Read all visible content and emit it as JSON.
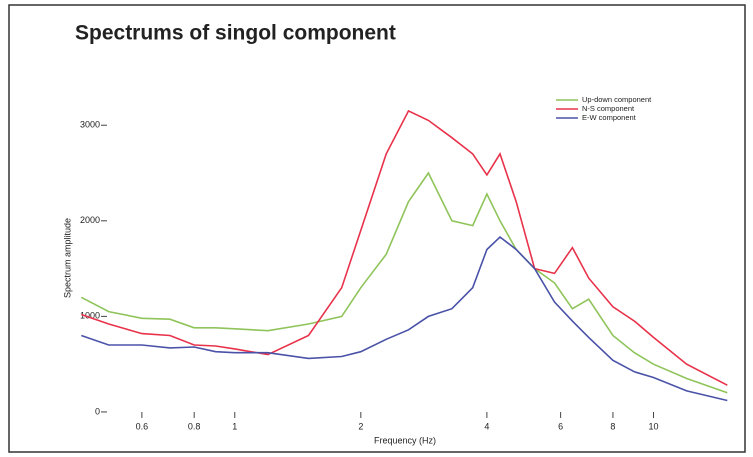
{
  "chart_data": {
    "type": "line",
    "title": "Spectrums of singol component",
    "xlabel": "Frequency (Hz)",
    "ylabel": "Spectrum amplitude",
    "xscale": "log",
    "x": [
      0.43,
      0.5,
      0.6,
      0.7,
      0.8,
      0.9,
      1,
      1.2,
      1.5,
      1.8,
      2,
      2.3,
      2.6,
      2.9,
      3.3,
      3.7,
      4,
      4.3,
      4.7,
      5.2,
      5.8,
      6.4,
      7,
      8,
      9,
      10,
      12,
      15
    ],
    "series": [
      {
        "name": "Up-down component",
        "color": "#8fc45a",
        "values": [
          1200,
          1050,
          980,
          970,
          880,
          880,
          870,
          850,
          920,
          1000,
          1300,
          1650,
          2200,
          2500,
          2000,
          1950,
          2280,
          2000,
          1700,
          1500,
          1350,
          1080,
          1180,
          800,
          620,
          500,
          350,
          200
        ]
      },
      {
        "name": "N-S component",
        "color": "#e8324a",
        "values": [
          1020,
          920,
          820,
          800,
          700,
          690,
          660,
          600,
          800,
          1300,
          1900,
          2700,
          3150,
          3050,
          2870,
          2700,
          2480,
          2700,
          2200,
          1500,
          1450,
          1720,
          1400,
          1100,
          950,
          780,
          500,
          280
        ]
      },
      {
        "name": "E-W component",
        "color": "#4a52a8",
        "values": [
          800,
          700,
          700,
          670,
          680,
          630,
          620,
          620,
          560,
          580,
          630,
          760,
          860,
          1000,
          1080,
          1300,
          1700,
          1830,
          1700,
          1500,
          1150,
          950,
          780,
          540,
          420,
          360,
          220,
          120
        ]
      }
    ],
    "xlim": [
      0.42,
      16
    ],
    "xticks": [
      0.6,
      0.8,
      1,
      2,
      4,
      6,
      8,
      10
    ],
    "ylim": [
      -100,
      3400
    ],
    "yticks": [
      0,
      1000,
      2000,
      3000
    ],
    "legend": "top-right"
  }
}
